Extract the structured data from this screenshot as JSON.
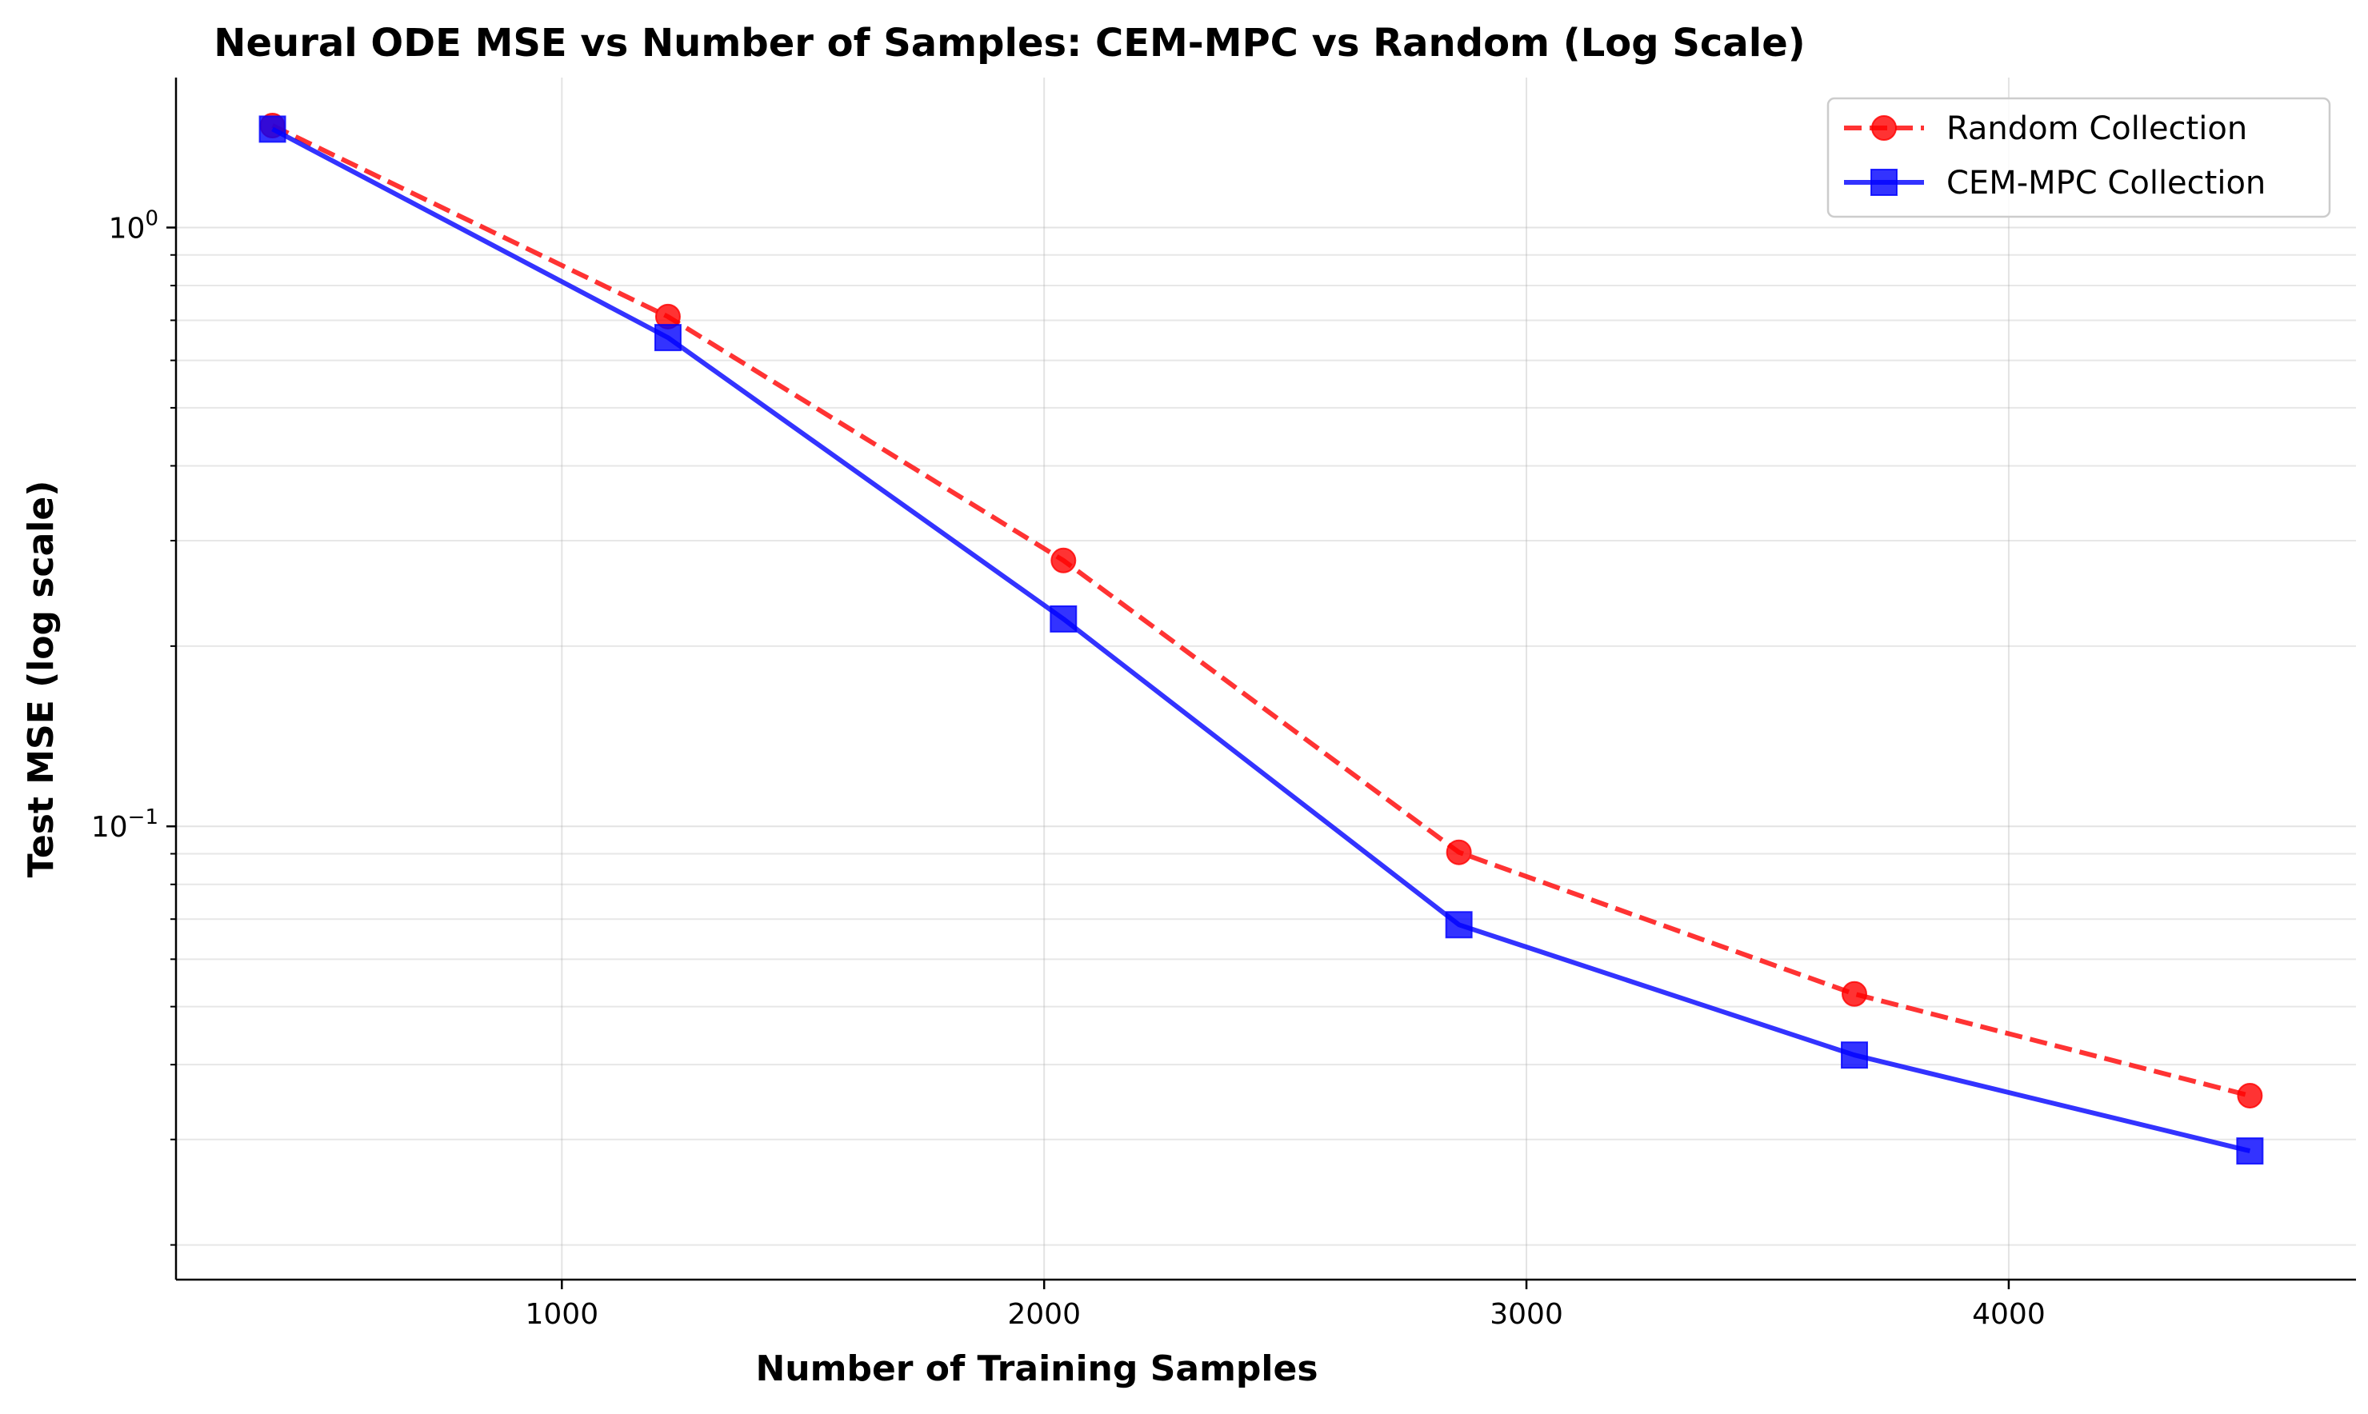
{
  "chart_data": {
    "type": "line",
    "title": "Neural ODE MSE vs Number of Samples: CEM-MPC vs Random (Log Scale)",
    "xlabel": "Number of Training Samples",
    "ylabel": "Test MSE (log scale)",
    "xlim": [
      200,
      4720
    ],
    "ylim": [
      0.0175,
      1.78
    ],
    "y_scale": "log",
    "grid": true,
    "legend_position": "top-right",
    "x_ticks": [
      1000,
      2000,
      3000,
      4000
    ],
    "x_tick_labels": [
      "1000",
      "2000",
      "3000",
      "4000"
    ],
    "y_major_ticks": [
      {
        "value": 1.0,
        "base": "10",
        "exp": "0"
      },
      {
        "value": 0.1,
        "base": "10",
        "exp": "−1"
      }
    ],
    "y_minor_ticks": [
      0.02,
      0.03,
      0.04,
      0.05,
      0.06,
      0.07,
      0.08,
      0.09,
      0.2,
      0.3,
      0.4,
      0.5,
      0.6,
      0.7,
      0.8,
      0.9
    ],
    "x": [
      400,
      1220,
      2040,
      2860,
      3680,
      4500
    ],
    "series": [
      {
        "name": "Random Collection",
        "values": [
          1.48,
          0.71,
          0.278,
          0.0905,
          0.0525,
          0.0355
        ],
        "color": "#ff0000",
        "line_style": "dashed",
        "marker": "circle"
      },
      {
        "name": "CEM-MPC Collection",
        "values": [
          1.46,
          0.655,
          0.222,
          0.0685,
          0.0415,
          0.0287
        ],
        "color": "#0000ff",
        "line_style": "solid",
        "marker": "square"
      }
    ]
  }
}
